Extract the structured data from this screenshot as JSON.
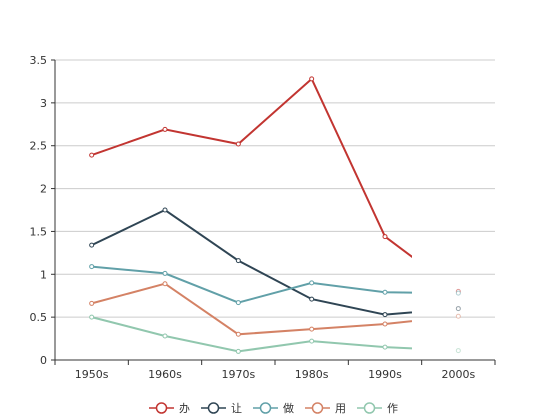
{
  "chart_data": {
    "type": "line",
    "categories": [
      "1950s",
      "1960s",
      "1970s",
      "1980s",
      "1990s",
      "2000s"
    ],
    "ylim": [
      0,
      3.5
    ],
    "y_ticks": [
      "0",
      "0.5",
      "1",
      "1.5",
      "2",
      "2.5",
      "3",
      "3.5"
    ],
    "grid": true,
    "legend_position": "bottom",
    "series": [
      {
        "name": "办",
        "color": "#c23531",
        "values": [
          2.39,
          2.69,
          2.52,
          3.28,
          1.44,
          0.8
        ]
      },
      {
        "name": "让",
        "color": "#2f4554",
        "values": [
          1.34,
          1.75,
          1.16,
          0.71,
          0.53,
          0.6
        ]
      },
      {
        "name": "做",
        "color": "#61a0a8",
        "values": [
          1.09,
          1.01,
          0.67,
          0.9,
          0.79,
          0.78
        ]
      },
      {
        "name": "用",
        "color": "#d48265",
        "values": [
          0.66,
          0.89,
          0.3,
          0.36,
          0.42,
          0.51
        ]
      },
      {
        "name": "作",
        "color": "#91c7ae",
        "values": [
          0.5,
          0.28,
          0.1,
          0.22,
          0.15,
          0.11
        ]
      }
    ]
  }
}
